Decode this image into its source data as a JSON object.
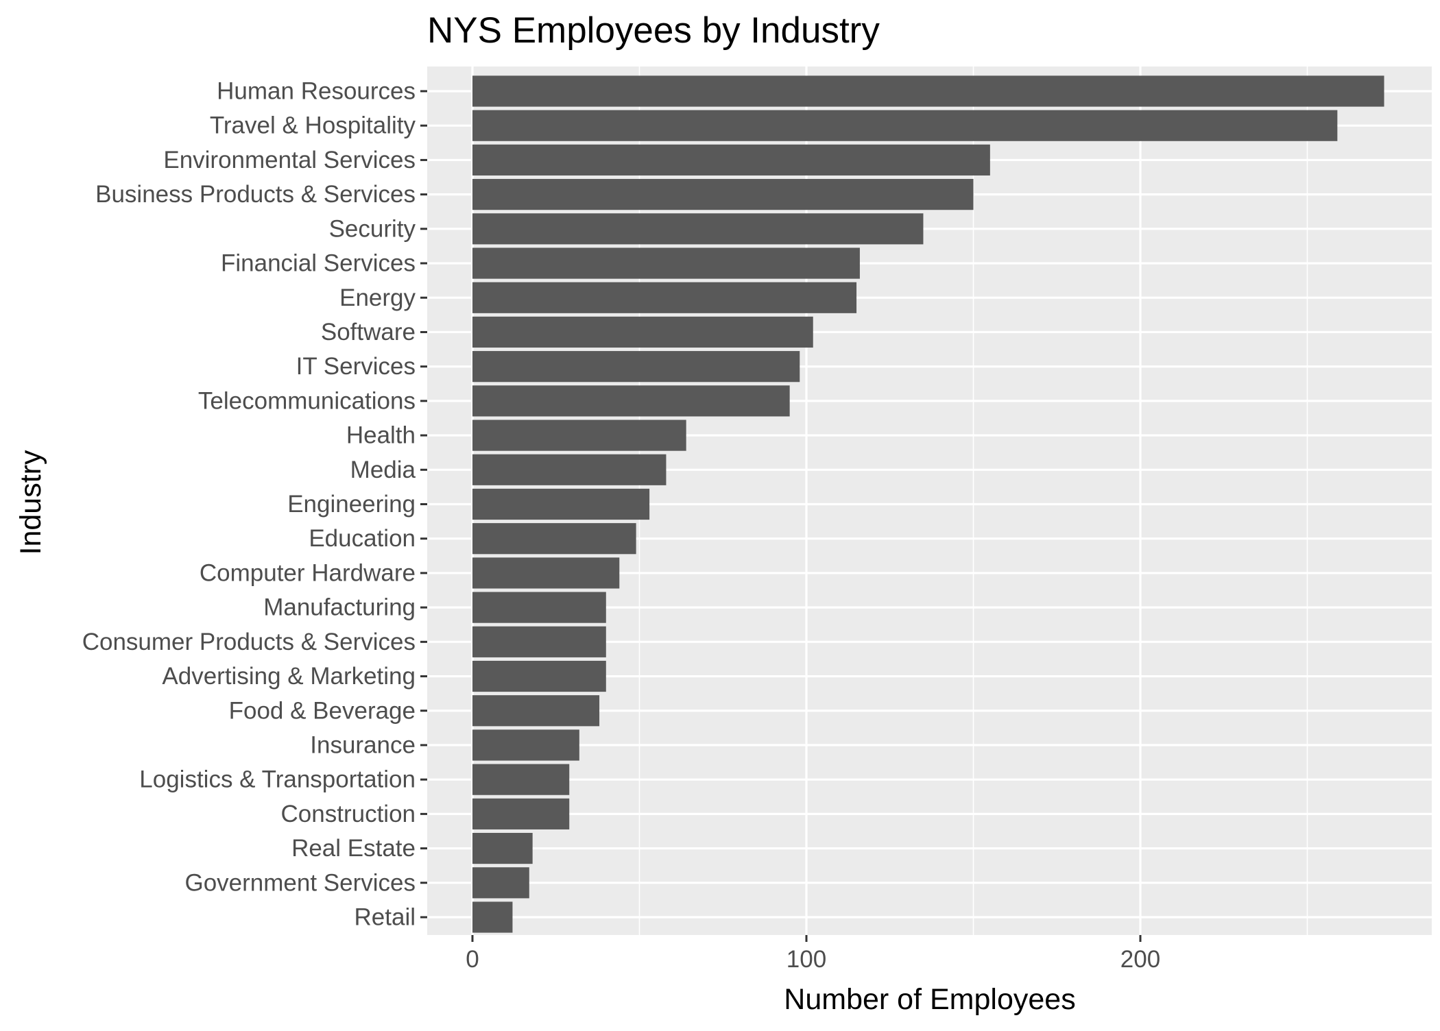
{
  "chart_data": {
    "type": "bar",
    "orientation": "horizontal",
    "title": "NYS Employees by Industry",
    "xlabel": "Number of Employees",
    "ylabel": "Industry",
    "xlim": [
      -13,
      286
    ],
    "xticks": [
      0,
      100,
      200
    ],
    "grid": true,
    "legend": "none",
    "colors": {
      "bar": "#595959",
      "panel": "#ebebeb",
      "grid": "#ffffff",
      "tick_text": "#4d4d4d",
      "tick_mark": "#333333"
    },
    "categories": [
      "Human Resources",
      "Travel & Hospitality",
      "Environmental Services",
      "Business Products & Services",
      "Security",
      "Financial Services",
      "Energy",
      "Software",
      "IT Services",
      "Telecommunications",
      "Health",
      "Media",
      "Engineering",
      "Education",
      "Computer Hardware",
      "Manufacturing",
      "Consumer Products & Services",
      "Advertising & Marketing",
      "Food & Beverage",
      "Insurance",
      "Logistics & Transportation",
      "Construction",
      "Real Estate",
      "Government Services",
      "Retail"
    ],
    "values": [
      273,
      259,
      155,
      150,
      135,
      116,
      115,
      102,
      98,
      95,
      64,
      58,
      53,
      49,
      44,
      40,
      40,
      40,
      38,
      32,
      29,
      29,
      18,
      17,
      12
    ]
  }
}
